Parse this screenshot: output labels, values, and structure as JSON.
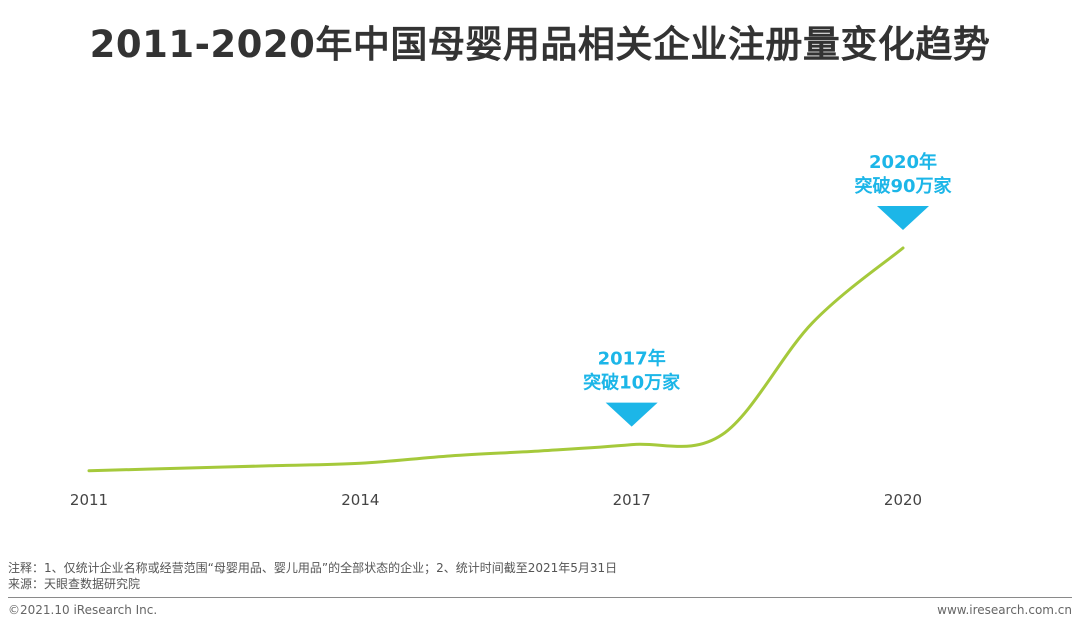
{
  "title": "2011-2020年中国母婴用品相关企业注册量变化趋势",
  "chart_data": {
    "type": "line",
    "x": [
      2011,
      2012,
      2013,
      2014,
      2015,
      2016,
      2017,
      2018,
      2019,
      2020
    ],
    "tick_labels": [
      "2011",
      "2014",
      "2017",
      "2020"
    ],
    "series": [
      {
        "values": [
          0.5,
          1.5,
          2.5,
          3.5,
          6.5,
          8.5,
          11,
          15,
          60,
          90
        ]
      }
    ],
    "ylim": [
      0,
      100
    ],
    "grid": false,
    "line_color": "#a5c93b",
    "annotations": [
      {
        "x": 2017,
        "year_text": "2017年",
        "text": "突破10万家",
        "color": "#1cb6e8"
      },
      {
        "x": 2020,
        "year_text": "2020年",
        "text": "突破90万家",
        "color": "#1cb6e8"
      }
    ]
  },
  "notes": {
    "line1": "注释：1、仅统计企业名称或经营范围“母婴用品、婴儿用品”的全部状态的企业；2、统计时间截至2021年5月31日",
    "line2": "来源：天眼查数据研究院"
  },
  "footer": {
    "copyright": "©2021.10 iResearch Inc.",
    "website": "www.iresearch.com.cn"
  }
}
